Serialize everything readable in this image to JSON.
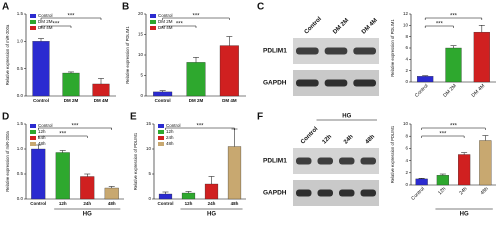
{
  "chart_data": [
    {
      "type": "bar",
      "panel": "A",
      "ylabel": "Relative expression of miR-200a",
      "categories": [
        "Control",
        "DM 2M",
        "DM 4M"
      ],
      "values": [
        1.0,
        0.42,
        0.22
      ],
      "errors": [
        0.05,
        0.02,
        0.1
      ],
      "colors": [
        "#2b2bd0",
        "#2ea82e",
        "#d02020"
      ],
      "ylim": [
        0,
        1.5
      ],
      "yticks": [
        {
          "value": 0,
          "label": "0.0"
        },
        {
          "value": 0.5,
          "label": "0.5"
        },
        {
          "value": 1,
          "label": "1.0"
        },
        {
          "value": 1.5,
          "label": "1.5"
        }
      ],
      "legend": true,
      "significance": [
        {
          "text": "***",
          "between": [
            "Control",
            "DM 2M"
          ]
        },
        {
          "text": "***",
          "between": [
            "Control",
            "DM 4M"
          ]
        }
      ]
    },
    {
      "type": "bar",
      "panel": "B",
      "ylabel": "Relative expression of PDLIM1",
      "categories": [
        "Control",
        "DM 2M",
        "DM 4M"
      ],
      "values": [
        1,
        8.2,
        12.3
      ],
      "errors": [
        0.3,
        1.2,
        2.2
      ],
      "colors": [
        "#2b2bd0",
        "#2ea82e",
        "#d02020"
      ],
      "ylim": [
        0,
        20
      ],
      "yticks": [
        0,
        5,
        10,
        15,
        20
      ],
      "legend": true,
      "significance": [
        {
          "text": "***",
          "between": [
            "Control",
            "DM 2M"
          ]
        },
        {
          "text": "***",
          "between": [
            "Control",
            "DM 4M"
          ]
        }
      ]
    },
    {
      "type": "bar",
      "ylabel": "Relative expression of PDLIM1",
      "categories": [
        "Control",
        "DM 2M",
        "DM 4M"
      ],
      "values": [
        1,
        6,
        8.8
      ],
      "errors": [
        0.1,
        0.4,
        1.2
      ],
      "colors": [
        "#2b2bd0",
        "#2ea82e",
        "#d02020"
      ],
      "ylim": [
        0,
        12
      ],
      "yticks": [
        0,
        2,
        4,
        6,
        8,
        10,
        12
      ],
      "legend": false,
      "rotate_labels": true,
      "significance": [
        {
          "text": "***",
          "between": [
            "Control",
            "DM 2M"
          ]
        },
        {
          "text": "***",
          "between": [
            "Control",
            "DM 4M"
          ]
        }
      ]
    },
    {
      "type": "bar",
      "panel": "D",
      "ylabel": "Relative expression of miR-200a",
      "categories": [
        "Control",
        "12h",
        "24h",
        "48h"
      ],
      "values": [
        1.0,
        0.93,
        0.45,
        0.22
      ],
      "errors": [
        0.08,
        0.04,
        0.05,
        0.03
      ],
      "colors": [
        "#2b2bd0",
        "#2ea82e",
        "#d02020",
        "#c8a870"
      ],
      "ylim": [
        0,
        1.5
      ],
      "yticks": [
        {
          "value": 0,
          "label": "0.0"
        },
        {
          "value": 0.5,
          "label": "0.5"
        },
        {
          "value": 1,
          "label": "1.0"
        },
        {
          "value": 1.5,
          "label": "1.5"
        }
      ],
      "legend": true,
      "xgroup": {
        "label": "HG",
        "categories": [
          "12h",
          "24h",
          "48h"
        ]
      },
      "significance": [
        {
          "text": "***",
          "between": [
            "Control",
            "24h"
          ]
        },
        {
          "text": "***",
          "between": [
            "Control",
            "48h"
          ]
        }
      ]
    },
    {
      "type": "bar",
      "panel": "E",
      "ylabel": "Relative expression of PDLIM1",
      "categories": [
        "Control",
        "12h",
        "24h",
        "48h"
      ],
      "values": [
        1,
        1.2,
        3,
        10.5
      ],
      "errors": [
        0.4,
        0.3,
        1.5,
        3.5
      ],
      "colors": [
        "#2b2bd0",
        "#2ea82e",
        "#d02020",
        "#c8a870"
      ],
      "ylim": [
        0,
        15
      ],
      "yticks": [
        0,
        5,
        10,
        15
      ],
      "legend": true,
      "xgroup": {
        "label": "HG",
        "categories": [
          "12h",
          "24h",
          "48h"
        ]
      },
      "significance": [
        {
          "text": "***",
          "between": [
            "Control",
            "48h"
          ]
        }
      ]
    },
    {
      "type": "bar",
      "ylabel": "Relative expression of PDLIM1",
      "categories": [
        "Control",
        "12h",
        "24h",
        "48h"
      ],
      "values": [
        1,
        1.6,
        5,
        7.3
      ],
      "errors": [
        0.1,
        0.2,
        0.3,
        0.8
      ],
      "colors": [
        "#2b2bd0",
        "#2ea82e",
        "#d02020",
        "#c8a870"
      ],
      "ylim": [
        0,
        10
      ],
      "yticks": [
        0,
        2,
        4,
        6,
        8,
        10
      ],
      "legend": false,
      "rotate_labels": true,
      "xgroup": {
        "label": "HG",
        "categories": [
          "12h",
          "24h",
          "48h"
        ]
      },
      "significance": [
        {
          "text": "***",
          "between": [
            "Control",
            "24h"
          ]
        },
        {
          "text": "***",
          "between": [
            "Control",
            "48h"
          ]
        }
      ]
    }
  ],
  "blots": [
    {
      "panel": "C",
      "lanes": [
        "Control",
        "DM 2M",
        "DM 4M"
      ],
      "rows": [
        "PDLIM1",
        "GAPDH"
      ]
    },
    {
      "panel": "F",
      "group": "HG",
      "lanes": [
        "Control",
        "12h",
        "24h",
        "48h"
      ],
      "rows": [
        "PDLIM1",
        "GAPDH"
      ]
    }
  ]
}
